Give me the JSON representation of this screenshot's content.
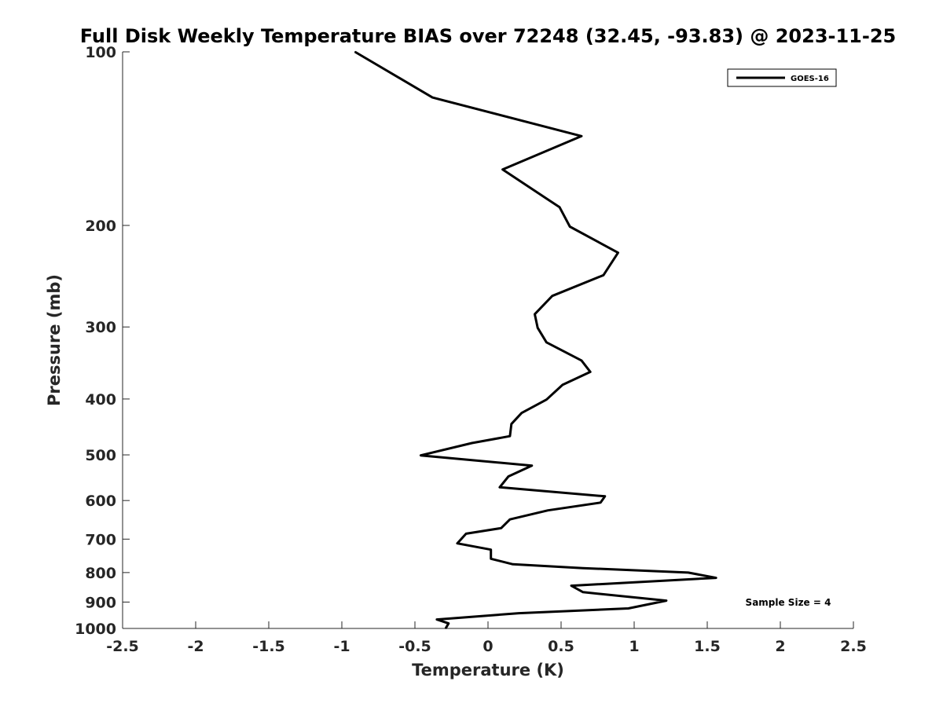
{
  "chart_data": {
    "type": "line",
    "title": "Full Disk Weekly Temperature BIAS over 72248 (32.45, -93.83) @ 2023-11-25",
    "xlabel": "Temperature (K)",
    "ylabel": "Pressure (mb)",
    "xlim": [
      -2.5,
      2.5
    ],
    "ylim": [
      100,
      1000
    ],
    "y_scale": "log",
    "y_reversed": true,
    "x_ticks": [
      "-2.5",
      "-2",
      "-1.5",
      "-1",
      "-0.5",
      "0",
      "0.5",
      "1",
      "1.5",
      "2",
      "2.5"
    ],
    "x_tick_values": [
      -2.5,
      -2,
      -1.5,
      -1,
      -0.5,
      0,
      0.5,
      1,
      1.5,
      2,
      2.5
    ],
    "y_ticks": [
      "100",
      "200",
      "300",
      "400",
      "500",
      "600",
      "700",
      "800",
      "900",
      "1000"
    ],
    "y_tick_values": [
      100,
      200,
      300,
      400,
      500,
      600,
      700,
      800,
      900,
      1000
    ],
    "grid": false,
    "legend_position": "top-right",
    "annotation": "Sample Size = 4",
    "series": [
      {
        "name": "GOES-16",
        "color": "#000000",
        "points": [
          {
            "x": -0.91,
            "y": 100
          },
          {
            "x": -0.38,
            "y": 120
          },
          {
            "x": 0.64,
            "y": 140
          },
          {
            "x": 0.1,
            "y": 160
          },
          {
            "x": 0.49,
            "y": 186
          },
          {
            "x": 0.56,
            "y": 201
          },
          {
            "x": 0.89,
            "y": 223
          },
          {
            "x": 0.79,
            "y": 244
          },
          {
            "x": 0.44,
            "y": 265
          },
          {
            "x": 0.32,
            "y": 285
          },
          {
            "x": 0.34,
            "y": 301
          },
          {
            "x": 0.4,
            "y": 319
          },
          {
            "x": 0.64,
            "y": 343
          },
          {
            "x": 0.7,
            "y": 359
          },
          {
            "x": 0.51,
            "y": 378
          },
          {
            "x": 0.4,
            "y": 401
          },
          {
            "x": 0.23,
            "y": 423
          },
          {
            "x": 0.16,
            "y": 442
          },
          {
            "x": 0.15,
            "y": 464
          },
          {
            "x": -0.11,
            "y": 477
          },
          {
            "x": -0.46,
            "y": 501
          },
          {
            "x": 0.3,
            "y": 522
          },
          {
            "x": 0.14,
            "y": 545
          },
          {
            "x": 0.08,
            "y": 569
          },
          {
            "x": 0.8,
            "y": 590
          },
          {
            "x": 0.77,
            "y": 605
          },
          {
            "x": 0.41,
            "y": 624
          },
          {
            "x": 0.15,
            "y": 647
          },
          {
            "x": 0.09,
            "y": 670
          },
          {
            "x": -0.15,
            "y": 685
          },
          {
            "x": -0.21,
            "y": 712
          },
          {
            "x": 0.02,
            "y": 730
          },
          {
            "x": 0.02,
            "y": 757
          },
          {
            "x": 0.17,
            "y": 774
          },
          {
            "x": 0.65,
            "y": 786
          },
          {
            "x": 1.37,
            "y": 800
          },
          {
            "x": 1.56,
            "y": 817
          },
          {
            "x": 0.57,
            "y": 843
          },
          {
            "x": 0.65,
            "y": 865
          },
          {
            "x": 1.22,
            "y": 895
          },
          {
            "x": 0.96,
            "y": 923
          },
          {
            "x": 0.21,
            "y": 941
          },
          {
            "x": -0.35,
            "y": 965
          },
          {
            "x": -0.27,
            "y": 980
          },
          {
            "x": -0.29,
            "y": 1000
          }
        ]
      }
    ]
  }
}
